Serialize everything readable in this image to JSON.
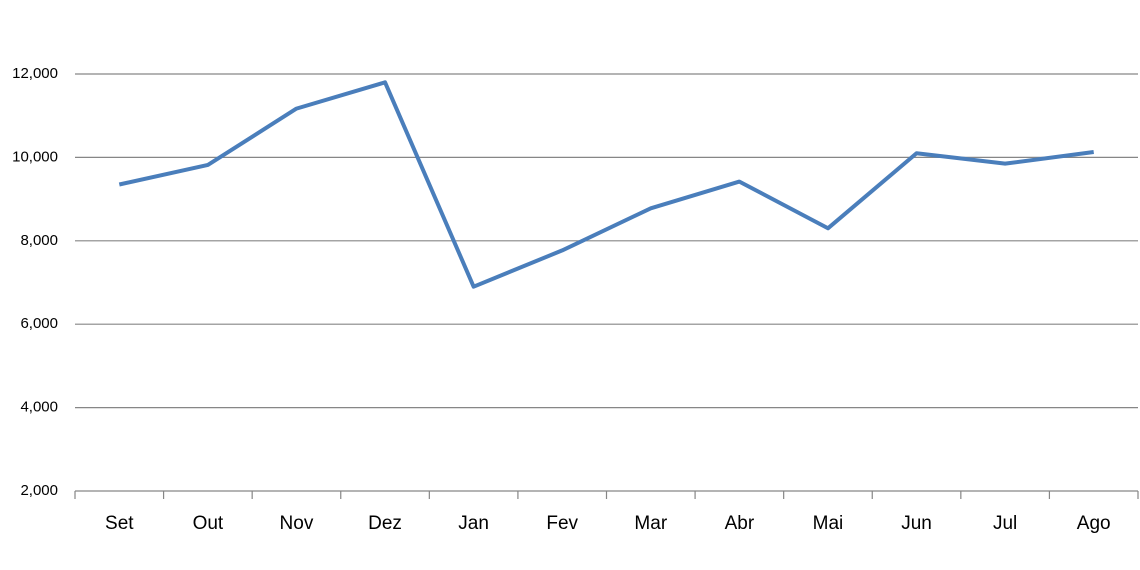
{
  "chart_data": {
    "type": "line",
    "categories": [
      "Set",
      "Out",
      "Nov",
      "Dez",
      "Jan",
      "Fev",
      "Mar",
      "Abr",
      "Mai",
      "Jun",
      "Jul",
      "Ago"
    ],
    "series": [
      {
        "color": "#4a7ebb",
        "values": [
          9350,
          9820,
          11170,
          11800,
          6900,
          7770,
          8780,
          9420,
          8300,
          10100,
          9850,
          10130
        ]
      }
    ],
    "ylim": [
      2000,
      12000
    ],
    "yticks": [
      {
        "value": 2000,
        "label": "2,000"
      },
      {
        "value": 4000,
        "label": "4,000"
      },
      {
        "value": 6000,
        "label": "6,000"
      },
      {
        "value": 8000,
        "label": "8,000"
      },
      {
        "value": 10000,
        "label": "10,000"
      },
      {
        "value": 12000,
        "label": "12,000"
      }
    ],
    "grid": true
  }
}
